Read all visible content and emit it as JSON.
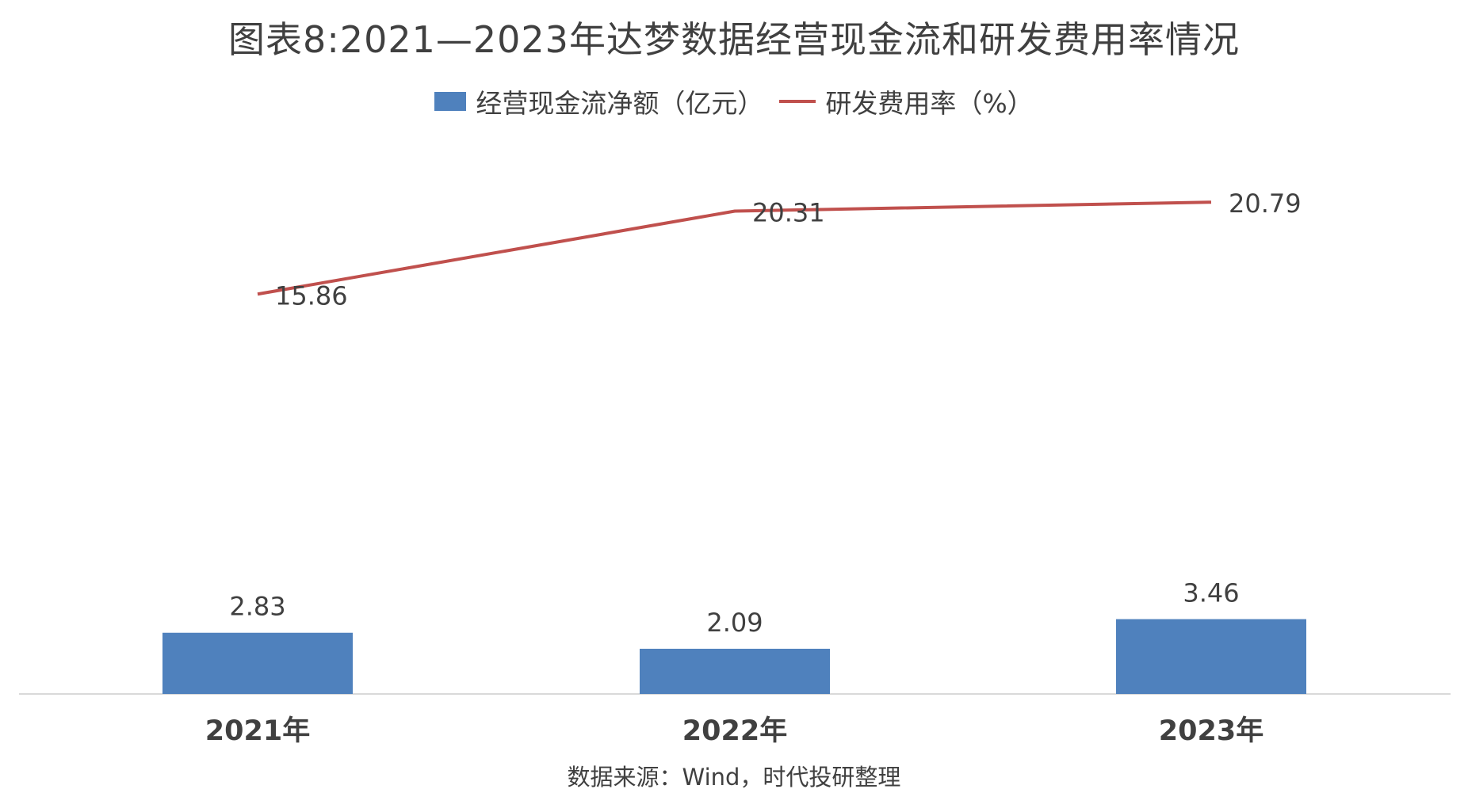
{
  "chart_data": {
    "type": "bar",
    "title": "图表8:2021—2023年达梦数据经营现金流和研发费用率情况",
    "categories": [
      "2021年",
      "2022年",
      "2023年"
    ],
    "series": [
      {
        "name": "经营现金流净额（亿元）",
        "type": "bar",
        "values": [
          2.83,
          2.09,
          3.46
        ],
        "color": "#4f81bd"
      },
      {
        "name": "研发费用率（%）",
        "type": "line",
        "values": [
          15.86,
          20.31,
          20.79
        ],
        "color": "#c0504d"
      }
    ],
    "data_labels": true,
    "legend": "top-center",
    "grid": false,
    "source": "数据来源：Wind，时代投研整理"
  }
}
